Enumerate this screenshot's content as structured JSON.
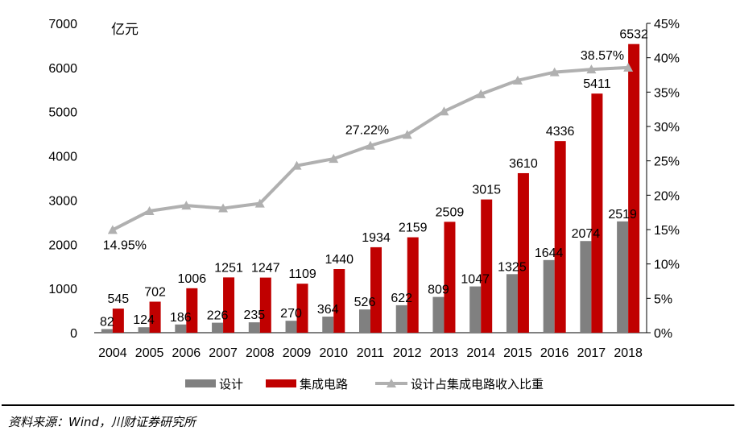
{
  "chart_data": {
    "type": "bar+line",
    "unit_label": "亿元",
    "categories": [
      "2004",
      "2005",
      "2006",
      "2007",
      "2008",
      "2009",
      "2010",
      "2011",
      "2012",
      "2013",
      "2014",
      "2015",
      "2016",
      "2017",
      "2018"
    ],
    "series": [
      {
        "name": "设计",
        "type": "bar",
        "axis": "left",
        "color": "#808080",
        "values": [
          82,
          124,
          186,
          226,
          235,
          270,
          364,
          526,
          622,
          809,
          1047,
          1325,
          1644,
          2074,
          2519
        ]
      },
      {
        "name": "集成电路",
        "type": "bar",
        "axis": "left",
        "color": "#c00000",
        "values": [
          545,
          702,
          1006,
          1251,
          1247,
          1109,
          1440,
          1934,
          2159,
          2509,
          3015,
          3610,
          4336,
          5411,
          6532
        ]
      },
      {
        "name": "设计占集成电路收入比重",
        "type": "line",
        "axis": "right",
        "color": "#b0b0b0",
        "marker": "triangle",
        "values": [
          14.95,
          17.7,
          18.5,
          18.1,
          18.8,
          24.3,
          25.3,
          27.22,
          28.8,
          32.2,
          34.7,
          36.7,
          37.9,
          38.3,
          38.57
        ],
        "labels": {
          "0": "14.95%",
          "7": "27.22%",
          "14": "38.57%"
        }
      }
    ],
    "y_left": {
      "range": [
        0,
        7000
      ],
      "ticks": [
        "0",
        "1000",
        "2000",
        "3000",
        "4000",
        "5000",
        "6000",
        "7000"
      ]
    },
    "y_right": {
      "range": [
        0,
        45
      ],
      "ticks": [
        "0%",
        "5%",
        "10%",
        "15%",
        "20%",
        "25%",
        "30%",
        "35%",
        "40%",
        "45%"
      ]
    },
    "grid": false,
    "legend_position": "bottom"
  },
  "source": "资料来源：Wind，川财证券研究所"
}
